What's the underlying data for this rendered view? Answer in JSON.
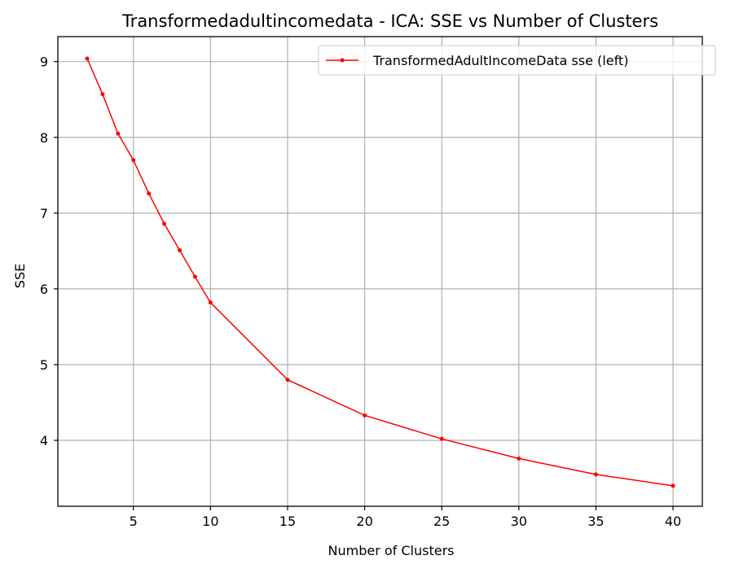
{
  "chart_data": {
    "type": "line",
    "title": "Transformedadultincomedata - ICA: SSE vs Number of Clusters",
    "xlabel": "Number of Clusters",
    "ylabel": "SSE",
    "xlim": [
      0.1,
      41.9
    ],
    "ylim": [
      3.13,
      9.33
    ],
    "xticks": [
      5,
      10,
      15,
      20,
      25,
      30,
      35,
      40
    ],
    "yticks": [
      4,
      5,
      6,
      7,
      8,
      9
    ],
    "grid": true,
    "legend_position": "top-right",
    "series": [
      {
        "name": "TransformedAdultIncomeData sse (left)",
        "color": "#ff0000",
        "marker": "dot",
        "x": [
          2,
          3,
          4,
          5,
          6,
          7,
          8,
          9,
          10,
          15,
          20,
          25,
          30,
          35,
          40
        ],
        "y": [
          9.04,
          8.57,
          8.05,
          7.7,
          7.26,
          6.86,
          6.51,
          6.16,
          5.82,
          4.8,
          4.33,
          4.02,
          3.76,
          3.55,
          3.4
        ]
      }
    ]
  }
}
